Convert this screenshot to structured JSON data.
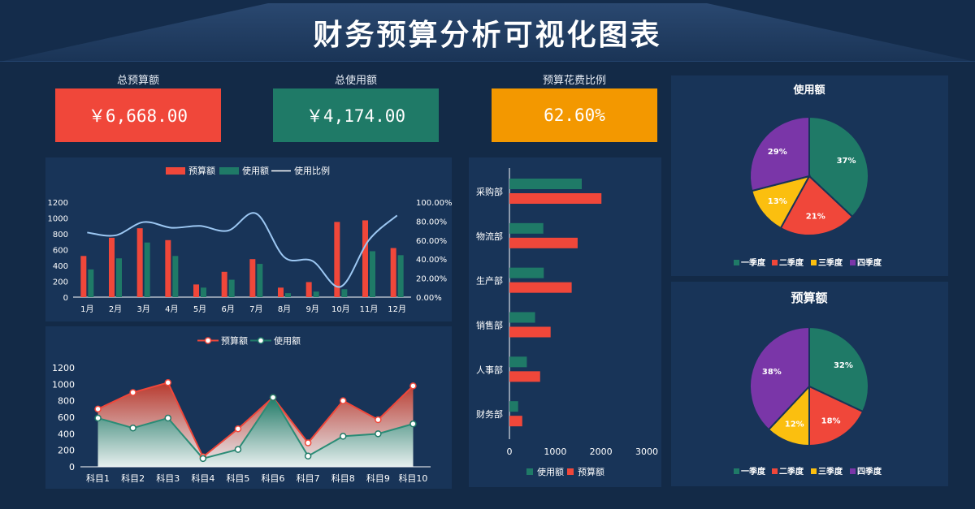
{
  "title": "财务预算分析可视化图表",
  "kpis": [
    {
      "label": "总预算额",
      "value": "￥6,668.00",
      "color": "#f0473a"
    },
    {
      "label": "总使用额",
      "value": "￥4,174.00",
      "color": "#1f7a67"
    },
    {
      "label": "预算花费比例",
      "value": "62.60%",
      "color": "#f39800"
    }
  ],
  "colors": {
    "budget": "#f0473a",
    "used": "#1f7a67",
    "ratio": "#9cc7f2",
    "q1": "#1f7a67",
    "q2": "#f0473a",
    "q3": "#fbbf0f",
    "q4": "#7a36a8"
  },
  "chart_data": [
    {
      "id": "monthly",
      "type": "bar",
      "legend": [
        "预算额",
        "使用额",
        "使用比例"
      ],
      "categories": [
        "1月",
        "2月",
        "3月",
        "4月",
        "5月",
        "6月",
        "7月",
        "8月",
        "9月",
        "10月",
        "11月",
        "12月"
      ],
      "series": [
        {
          "name": "预算额",
          "values": [
            520,
            750,
            870,
            720,
            160,
            320,
            480,
            120,
            190,
            950,
            970,
            620
          ]
        },
        {
          "name": "使用额",
          "values": [
            350,
            490,
            690,
            520,
            120,
            220,
            420,
            50,
            70,
            100,
            580,
            530
          ]
        },
        {
          "name": "使用比例",
          "axis": "right",
          "values": [
            68,
            65,
            79,
            73,
            75,
            70,
            88,
            42,
            38,
            11,
            60,
            86
          ]
        }
      ],
      "yticks_left": [
        "0",
        "200",
        "400",
        "600",
        "800",
        "1000",
        "1200"
      ],
      "yticks_right": [
        "0.00%",
        "20.00%",
        "40.00%",
        "60.00%",
        "80.00%",
        "100.00%"
      ],
      "ylim_left": [
        0,
        1200
      ],
      "ylim_right": [
        0,
        100
      ]
    },
    {
      "id": "subjects",
      "type": "area",
      "legend": [
        "预算额",
        "使用额"
      ],
      "categories": [
        "科目1",
        "科目2",
        "科目3",
        "科目4",
        "科目5",
        "科目6",
        "科目7",
        "科目8",
        "科目9",
        "科目10"
      ],
      "series": [
        {
          "name": "预算额",
          "values": [
            700,
            900,
            1020,
            120,
            460,
            840,
            290,
            800,
            570,
            980
          ]
        },
        {
          "name": "使用额",
          "values": [
            590,
            470,
            590,
            100,
            210,
            840,
            130,
            370,
            400,
            520
          ]
        }
      ],
      "yticks": [
        "0",
        "200",
        "400",
        "600",
        "800",
        "1000",
        "1200"
      ],
      "ylim": [
        0,
        1200
      ]
    },
    {
      "id": "departments",
      "type": "bar",
      "orientation": "horizontal",
      "legend": [
        "使用额",
        "预算额"
      ],
      "categories": [
        "采购部",
        "物流部",
        "生产部",
        "销售部",
        "人事部",
        "财务部"
      ],
      "series": [
        {
          "name": "使用额",
          "values": [
            1580,
            740,
            750,
            560,
            380,
            190
          ]
        },
        {
          "name": "预算额",
          "values": [
            2010,
            1490,
            1360,
            900,
            670,
            280
          ]
        }
      ],
      "xticks": [
        "0",
        "1000",
        "2000",
        "3000"
      ],
      "xlim": [
        0,
        3000
      ]
    },
    {
      "id": "usage-pie",
      "type": "pie",
      "title": "使用额",
      "labels": [
        "一季度",
        "二季度",
        "三季度",
        "四季度"
      ],
      "values": [
        37,
        21,
        13,
        29
      ],
      "value_labels": [
        "37%",
        "21%",
        "13%",
        "29%"
      ]
    },
    {
      "id": "budget-pie",
      "type": "pie",
      "title": "预算额",
      "labels": [
        "一季度",
        "二季度",
        "三季度",
        "四季度"
      ],
      "values": [
        32,
        18,
        12,
        38
      ],
      "value_labels": [
        "32%",
        "18%",
        "12%",
        "38%"
      ]
    }
  ]
}
